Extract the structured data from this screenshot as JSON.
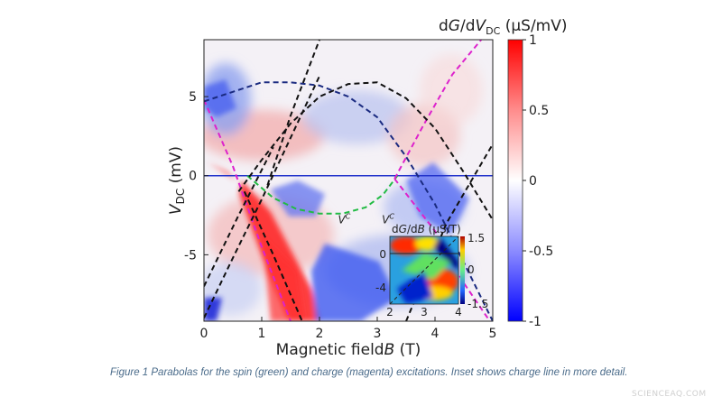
{
  "chart_data": {
    "type": "heatmap",
    "title": "dG/dV_DC (µS/mV)",
    "title_parts": {
      "d1": "d",
      "G": "G",
      "d2": "/d",
      "V": "V",
      "sub": "DC",
      "unit": " (µS/mV)"
    },
    "xlabel": "Magnetic field B (T)",
    "xlabel_parts": {
      "text": "Magnetic field",
      "var": "B",
      "unit": " (T)"
    },
    "ylabel": "V_DC (mV)",
    "ylabel_parts": {
      "var": "V",
      "sub": "DC",
      "unit": " (mV)"
    },
    "xlim": [
      0,
      5
    ],
    "ylim": [
      -9.2,
      8.6
    ],
    "x_ticks": [
      0,
      1,
      2,
      3,
      4,
      5
    ],
    "x_tick_labels": [
      "0",
      "1",
      "2",
      "3",
      "4",
      "5"
    ],
    "y_ticks": [
      5,
      0,
      -5
    ],
    "y_tick_labels": [
      "5",
      "0",
      "-5"
    ],
    "colorbar": {
      "range": [
        -1,
        1
      ],
      "ticks": [
        1,
        0.5,
        0,
        -0.5,
        -1
      ],
      "tick_labels": [
        "1",
        "0.5",
        "0",
        "-0.5",
        "-1"
      ],
      "colors": {
        "low": "#1a1aff",
        "mid": "#ffffff",
        "high": "#ff1a1a"
      }
    },
    "series": [
      {
        "name": "spin",
        "style": "dashed",
        "color": "#22bb44",
        "x": [
          0.75,
          1.2,
          1.6,
          2.0,
          2.4,
          2.8,
          3.1,
          3.35
        ],
        "y": [
          0,
          -1.4,
          -2.1,
          -2.4,
          -2.4,
          -2.0,
          -1.2,
          0
        ]
      },
      {
        "name": "charge",
        "style": "dashed",
        "color": "#dd22cc",
        "x": [
          0.0,
          0.5,
          1.0,
          1.5
        ],
        "y": [
          4.8,
          0.6,
          -4.5,
          -9.2
        ]
      },
      {
        "name": "charge",
        "style": "dashed",
        "color": "#dd22cc",
        "x": [
          3.3,
          3.8,
          4.3,
          4.8
        ],
        "y": [
          -0.2,
          3.2,
          6.4,
          8.6
        ]
      },
      {
        "name": "charge",
        "style": "dashed",
        "color": "#dd22cc",
        "x": [
          3.3,
          4.0,
          4.5,
          4.95
        ],
        "y": [
          -0.2,
          -3.5,
          -6.8,
          -9.2
        ]
      },
      {
        "name": "",
        "style": "dashed",
        "color": "#111111",
        "x": [
          0.6,
          1.0,
          1.5,
          2.0,
          2.5,
          3.0,
          3.5,
          4.0,
          4.5,
          5.0
        ],
        "y": [
          -1.0,
          1.0,
          3.3,
          5.0,
          5.8,
          5.9,
          4.9,
          3.0,
          0.2,
          -2.8
        ]
      },
      {
        "name": "",
        "style": "dashed",
        "color": "#1a2a80",
        "x": [
          0.0,
          0.5,
          1.0,
          1.5,
          2.0,
          2.5,
          3.0,
          3.5,
          4.0,
          4.5,
          5.0
        ],
        "y": [
          4.7,
          5.3,
          5.9,
          5.9,
          5.7,
          5.0,
          3.7,
          1.2,
          -1.8,
          -5.5,
          -9.2
        ]
      },
      {
        "name": "",
        "style": "dashed",
        "color": "#111111",
        "x": [
          1.1,
          1.5,
          2.0
        ],
        "y": [
          -0.6,
          3.8,
          8.6
        ]
      },
      {
        "name": "",
        "style": "dashed",
        "color": "#111111",
        "x": [
          0.0,
          0.5,
          1.0,
          1.5,
          2.0
        ],
        "y": [
          -9.0,
          -5.2,
          -1.5,
          2.4,
          6.3
        ]
      },
      {
        "name": "",
        "style": "dashed",
        "color": "#111111",
        "x": [
          0.0,
          0.6,
          1.2
        ],
        "y": [
          -7.0,
          -2.5,
          1.8
        ]
      },
      {
        "name": "",
        "style": "dashed",
        "color": "#111111",
        "x": [
          0.7,
          1.2,
          1.7
        ],
        "y": [
          -1.0,
          -5.0,
          -9.2
        ]
      },
      {
        "name": "",
        "style": "dashed",
        "color": "#111111",
        "x": [
          3.5,
          4.2,
          5.0
        ],
        "y": [
          -9.2,
          -3.0,
          2.0
        ]
      }
    ],
    "horizontal_line": {
      "y": 0,
      "color": "#2233cc"
    },
    "annotations": [
      {
        "text": "V",
        "sup": "C",
        "x": 2.32,
        "y": -3.0
      },
      {
        "text": "V",
        "sup": "C",
        "x": 3.08,
        "y": -3.0
      }
    ],
    "inset": {
      "title": "dG/dB (µS/T)",
      "title_parts": {
        "d1": "d",
        "G": "G",
        "d2": "/d",
        "B": "B",
        "unit": " (µS/T)"
      },
      "xlim": [
        2,
        4
      ],
      "x_ticks": [
        2,
        3,
        4
      ],
      "x_tick_labels": [
        "2",
        "3",
        "4"
      ],
      "y_ticks": [
        0,
        -4
      ],
      "y_tick_labels": [
        "0",
        "-4"
      ],
      "colorbar_ticks": [
        1.5,
        0,
        -1.5
      ],
      "colorbar_tick_labels": [
        "1.5",
        "0",
        "-1.5"
      ]
    }
  },
  "caption": "Figure 1   Parabolas for the spin (green) and charge (magenta) excitations. Inset shows charge line in more detail.",
  "watermark": "SCIENCEAQ.COM"
}
